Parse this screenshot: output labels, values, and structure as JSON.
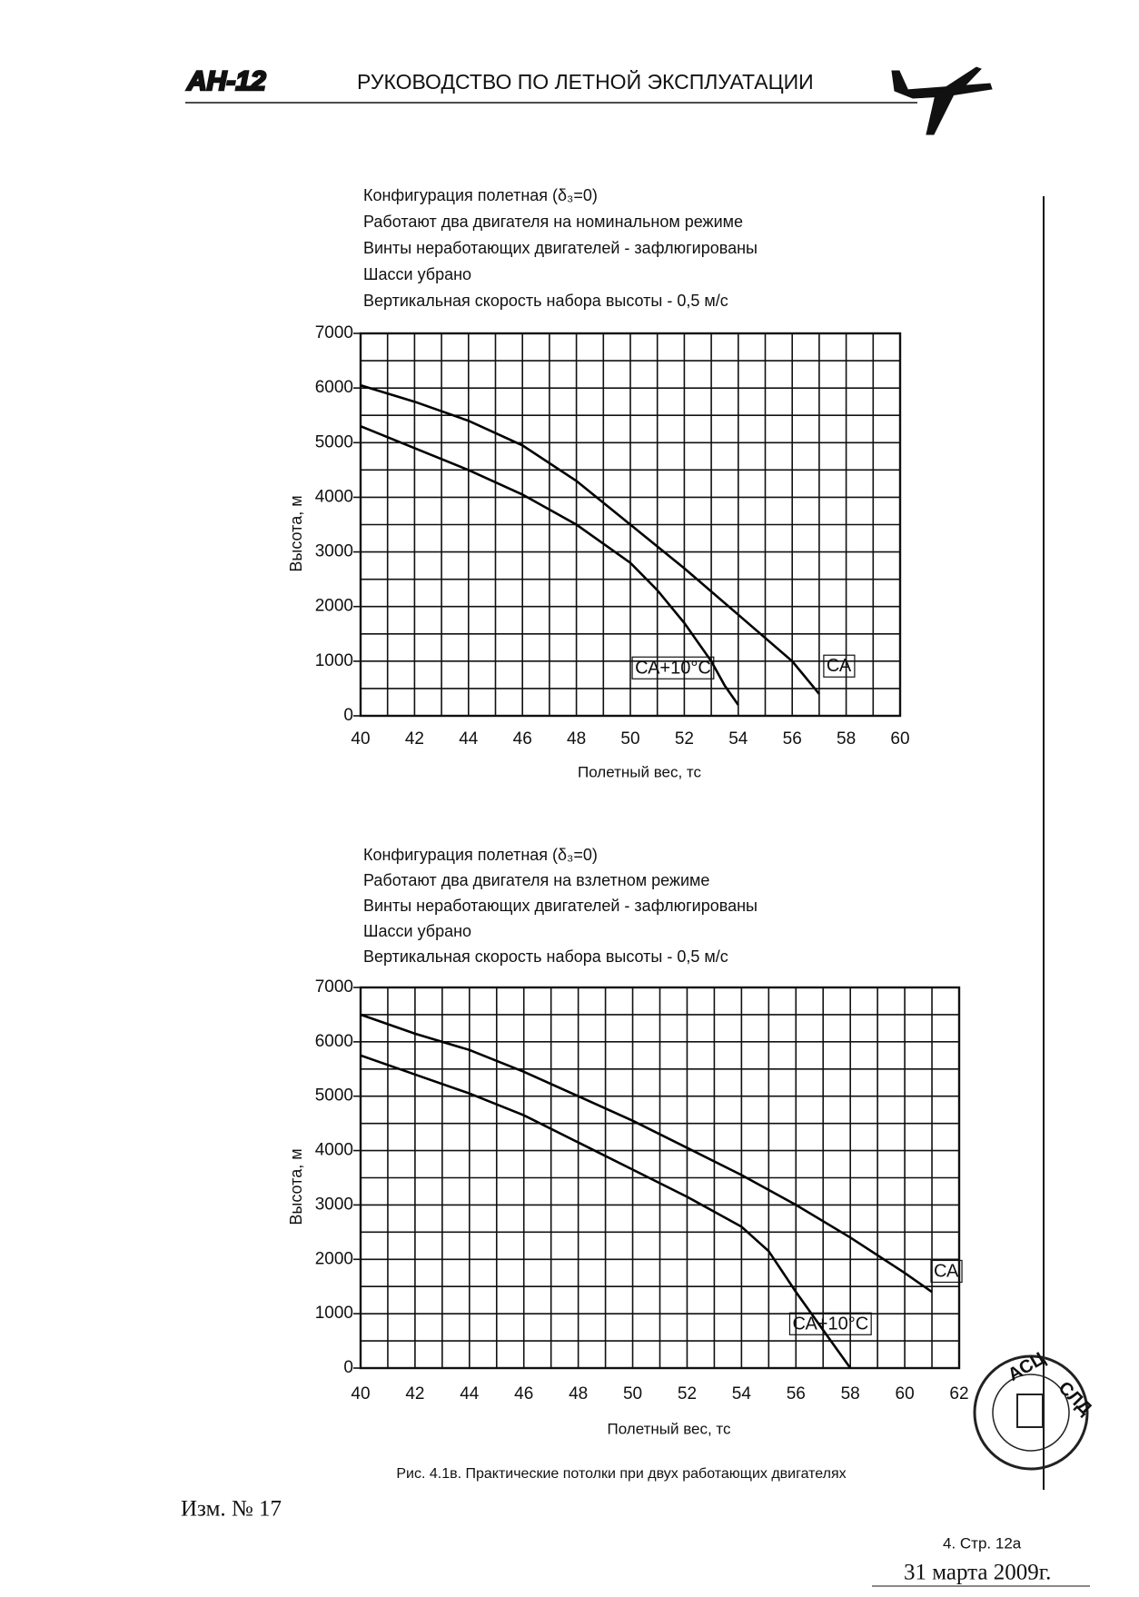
{
  "header": {
    "logo": "АН-12",
    "title": "РУКОВОДСТВО ПО ЛЕТНОЙ ЭКСПЛУАТАЦИИ"
  },
  "chart_data": [
    {
      "type": "line",
      "title": "Конфигурация полетная (δ₃=0)",
      "notes": [
        "Работают два двигателя на номинальном режиме",
        "Винты неработающих двигателей - зафлюгированы",
        "Шасси убрано",
        "Вертикальная скорость набора высоты - 0,5 м/с"
      ],
      "x_label": "Полетный вес, тс",
      "y_label": "Высота, м",
      "xlim": [
        40,
        60
      ],
      "xticks": [
        40,
        42,
        44,
        46,
        48,
        50,
        52,
        54,
        56,
        58,
        60
      ],
      "ylim": [
        0,
        7000
      ],
      "yticks": [
        0,
        1000,
        2000,
        3000,
        4000,
        5000,
        6000,
        7000
      ],
      "grid": true,
      "series": [
        {
          "name": "СА",
          "color": "#000000",
          "x": [
            40,
            42,
            44,
            46,
            48,
            50,
            52,
            54,
            56,
            57
          ],
          "values": [
            6050,
            5750,
            5400,
            4950,
            4300,
            3500,
            2700,
            1850,
            1000,
            400
          ]
        },
        {
          "name": "СА+10°С",
          "color": "#000000",
          "x": [
            40,
            42,
            44,
            46,
            48,
            50,
            51,
            52,
            53,
            53.5,
            54
          ],
          "values": [
            5300,
            4900,
            4500,
            4050,
            3500,
            2800,
            2300,
            1700,
            1000,
            550,
            200
          ]
        }
      ]
    },
    {
      "type": "line",
      "title": "Конфигурация полетная (δ₃=0)",
      "notes": [
        "Работают два двигателя на взлетном режиме",
        "Винты неработающих двигателей - зафлюгированы",
        "Шасси убрано",
        "Вертикальная скорость набора высоты - 0,5 м/с"
      ],
      "x_label": "Полетный вес, тс",
      "y_label": "Высота, м",
      "xlim": [
        40,
        62
      ],
      "xticks": [
        40,
        42,
        44,
        46,
        48,
        50,
        52,
        54,
        56,
        58,
        60,
        62
      ],
      "ylim": [
        0,
        7000
      ],
      "yticks": [
        0,
        1000,
        2000,
        3000,
        4000,
        5000,
        6000,
        7000
      ],
      "grid": true,
      "series": [
        {
          "name": "СА",
          "color": "#000000",
          "x": [
            40,
            42,
            44,
            46,
            48,
            50,
            52,
            54,
            56,
            58,
            60,
            61
          ],
          "values": [
            6500,
            6150,
            5850,
            5450,
            5000,
            4550,
            4050,
            3550,
            3000,
            2400,
            1750,
            1400
          ]
        },
        {
          "name": "СА+10°С",
          "color": "#000000",
          "x": [
            40,
            42,
            44,
            46,
            48,
            50,
            52,
            54,
            55,
            56,
            57,
            58
          ],
          "values": [
            5750,
            5400,
            5050,
            4650,
            4150,
            3650,
            3150,
            2600,
            2150,
            1400,
            700,
            0
          ]
        }
      ]
    }
  ],
  "caption": "Рис. 4.1в.  Практические потолки при двух работающих двигателях",
  "footer": {
    "revision": "Изм. № 17",
    "page": "4.  Стр. 12а",
    "date": "31 марта 2009г."
  },
  "stamp": {
    "top": "АСЦ",
    "right": "СЛД"
  }
}
